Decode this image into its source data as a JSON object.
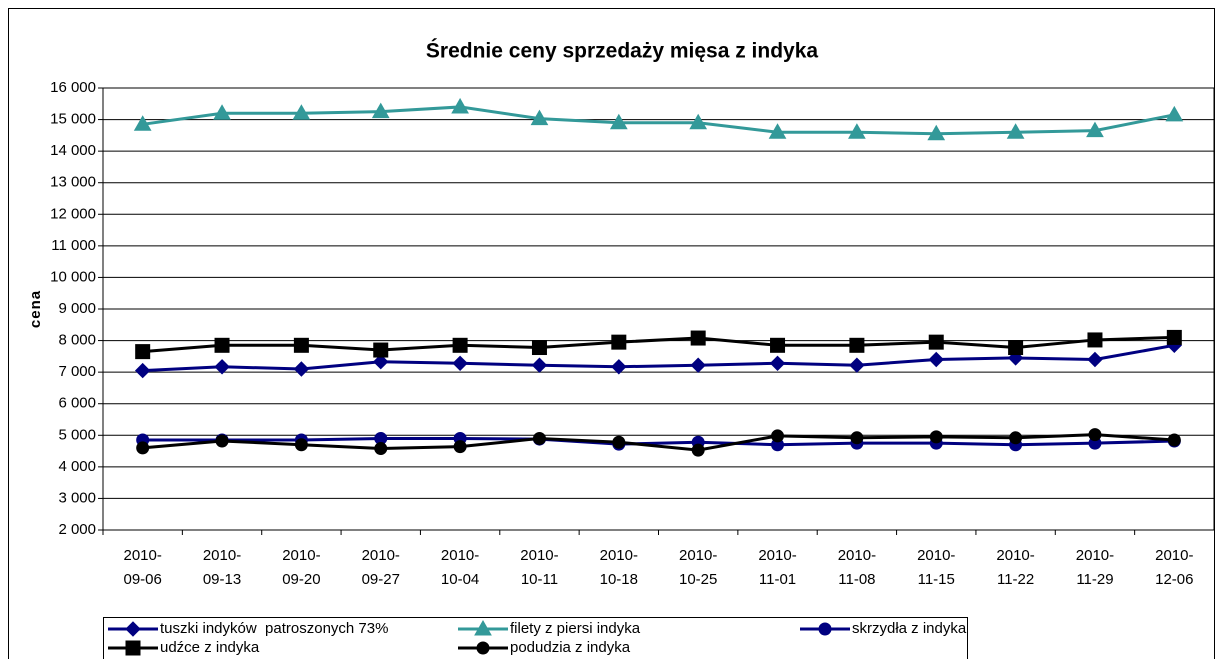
{
  "chart_data": {
    "type": "line",
    "title": "Średnie ceny sprzedaży mięsa z indyka",
    "y_label": "cena",
    "categories": [
      "2010-09-06",
      "2010-09-13",
      "2010-09-20",
      "2010-09-27",
      "2010-10-04",
      "2010-10-11",
      "2010-10-18",
      "2010-10-25",
      "2010-11-01",
      "2010-11-08",
      "2010-11-15",
      "2010-11-22",
      "2010-11-29",
      "2010-12-06"
    ],
    "ylim": [
      2000,
      16000
    ],
    "yticks": [
      {
        "value": 2000,
        "label": "2 000"
      },
      {
        "value": 3000,
        "label": "3 000"
      },
      {
        "value": 4000,
        "label": "4 000"
      },
      {
        "value": 5000,
        "label": "5 000"
      },
      {
        "value": 6000,
        "label": "6 000"
      },
      {
        "value": 7000,
        "label": "7 000"
      },
      {
        "value": 8000,
        "label": "8 000"
      },
      {
        "value": 9000,
        "label": "9 000"
      },
      {
        "value": 10000,
        "label": "10 000"
      },
      {
        "value": 11000,
        "label": "11 000"
      },
      {
        "value": 12000,
        "label": "12 000"
      },
      {
        "value": 13000,
        "label": "13 000"
      },
      {
        "value": 14000,
        "label": "14 000"
      },
      {
        "value": 15000,
        "label": "15 000"
      },
      {
        "value": 16000,
        "label": "16 000"
      }
    ],
    "grid": true,
    "series": [
      {
        "name": "tuszki indyków  patroszonych 73%",
        "color": "#000080",
        "marker": "diamond",
        "values": [
          7050,
          7170,
          7100,
          7330,
          7280,
          7220,
          7170,
          7220,
          7280,
          7220,
          7400,
          7450,
          7400,
          7850
        ]
      },
      {
        "name": "filety z piersi indyka",
        "color": "#339999",
        "marker": "triangle",
        "values": [
          14850,
          15200,
          15200,
          15250,
          15400,
          15030,
          14900,
          14900,
          14600,
          14600,
          14550,
          14600,
          14650,
          15150
        ]
      },
      {
        "name": "skrzydła z indyka",
        "color": "#000080",
        "marker": "circle",
        "values": [
          4850,
          4850,
          4850,
          4900,
          4900,
          4880,
          4720,
          4780,
          4700,
          4750,
          4750,
          4700,
          4750,
          4820
        ]
      },
      {
        "name": "udźce z indyka",
        "color": "#000000",
        "marker": "square",
        "values": [
          7650,
          7850,
          7850,
          7700,
          7850,
          7780,
          7950,
          8080,
          7850,
          7850,
          7950,
          7780,
          8020,
          8100
        ]
      },
      {
        "name": "podudzia z indyka",
        "color": "#000000",
        "marker": "circle",
        "values": [
          4600,
          4820,
          4700,
          4580,
          4640,
          4900,
          4780,
          4530,
          4980,
          4920,
          4950,
          4920,
          5020,
          4850
        ]
      }
    ]
  }
}
